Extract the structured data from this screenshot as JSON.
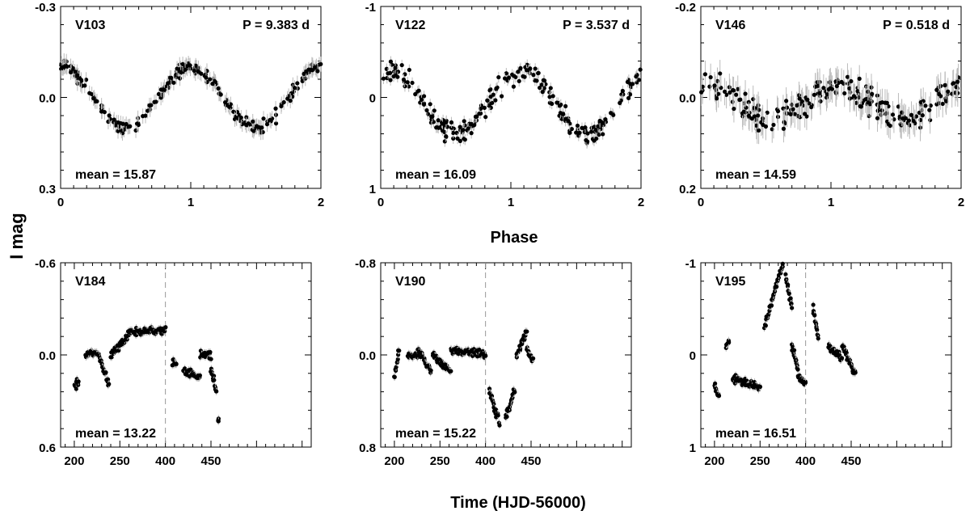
{
  "figure": {
    "y_axis_label": "I mag",
    "phase_axis_label": "Phase",
    "time_axis_label": "Time (HJD-56000)"
  },
  "chart_data": [
    {
      "type": "scatter",
      "star": "V103",
      "period": "P = 9.383 d",
      "mean": "mean = 15.87",
      "xlabel": "Phase",
      "ylabel": "I mag",
      "xlim": [
        0,
        2
      ],
      "ylim": [
        -0.3,
        0.3
      ],
      "y_inverted": true,
      "xticks": [
        "0",
        "1",
        "2"
      ],
      "yticks": [
        "-0.3",
        "0.0",
        "0.3"
      ],
      "ytick_values": [
        -0.3,
        0.0,
        0.3
      ],
      "curve": {
        "kind": "cos",
        "amplitude": 0.1,
        "offset": 0.0,
        "peak_phase": 0.0,
        "scatter": 0.02
      },
      "error_bar": 0.025
    },
    {
      "type": "scatter",
      "star": "V122",
      "period": "P = 3.537 d",
      "mean": "mean = 16.09",
      "xlabel": "Phase",
      "ylabel": "I mag",
      "xlim": [
        0,
        2
      ],
      "ylim": [
        -1,
        1
      ],
      "y_inverted": true,
      "xticks": [
        "0",
        "1",
        "2"
      ],
      "yticks": [
        "-1",
        "0",
        "1"
      ],
      "ytick_values": [
        -1,
        0,
        1
      ],
      "curve": {
        "kind": "cos",
        "amplitude": 0.35,
        "offset": 0.05,
        "peak_phase": 0.08,
        "scatter": 0.12
      },
      "error_bar": 0.06
    },
    {
      "type": "scatter",
      "star": "V146",
      "period": "P = 0.518 d",
      "mean": "mean = 14.59",
      "xlabel": "Phase",
      "ylabel": "I mag",
      "xlim": [
        0,
        2
      ],
      "ylim": [
        -0.2,
        0.2
      ],
      "y_inverted": true,
      "xticks": [
        "0",
        "1",
        "2"
      ],
      "yticks": [
        "-0.2",
        "0.0",
        "0.2"
      ],
      "ytick_values": [
        -0.2,
        0.0,
        0.2
      ],
      "curve": {
        "kind": "cos",
        "amplitude": 0.035,
        "offset": 0.01,
        "peak_phase": 0.05,
        "scatter": 0.03
      },
      "error_bar": 0.03
    },
    {
      "type": "scatter",
      "star": "V184",
      "mean": "mean = 13.22",
      "xlabel": "Time (HJD-56000)",
      "ylabel": "I mag",
      "xlim": [
        185,
        460
      ],
      "ylim": [
        -0.6,
        0.6
      ],
      "y_inverted": true,
      "xticks": [
        "200",
        "250",
        "400",
        "450"
      ],
      "xtick_pos": [
        200,
        250,
        300,
        350
      ],
      "yticks": [
        "-0.6",
        "0.0",
        "0.6"
      ],
      "ytick_values": [
        -0.6,
        0.0,
        0.6
      ],
      "break_at": 300,
      "segments": [
        {
          "t0": 200,
          "t1": 205,
          "y0": 0.2,
          "y1": 0.17
        },
        {
          "t0": 212,
          "t1": 226,
          "y0": 0.0,
          "y1": -0.02
        },
        {
          "t0": 227,
          "t1": 238,
          "y0": 0.0,
          "y1": 0.2
        },
        {
          "t0": 240,
          "t1": 262,
          "y0": 0.0,
          "y1": -0.15
        },
        {
          "t0": 262,
          "t1": 300,
          "y0": -0.15,
          "y1": -0.16
        },
        {
          "t0": 308,
          "t1": 312,
          "y0": 0.05,
          "y1": 0.05
        },
        {
          "t0": 320,
          "t1": 338,
          "y0": 0.1,
          "y1": 0.15
        },
        {
          "t0": 338,
          "t1": 350,
          "y0": 0.0,
          "y1": 0.0
        },
        {
          "t0": 350,
          "t1": 356,
          "y0": 0.1,
          "y1": 0.23
        },
        {
          "t0": 358,
          "t1": 358,
          "y0": 0.43,
          "y1": 0.43
        }
      ]
    },
    {
      "type": "scatter",
      "star": "V190",
      "mean": "mean = 15.22",
      "xlabel": "Time (HJD-56000)",
      "ylabel": "I mag",
      "xlim": [
        185,
        460
      ],
      "ylim": [
        -0.8,
        0.8
      ],
      "y_inverted": true,
      "xticks": [
        "200",
        "250",
        "400",
        "450"
      ],
      "xtick_pos": [
        200,
        250,
        300,
        350
      ],
      "yticks": [
        "-0.8",
        "0.0",
        "0.8"
      ],
      "ytick_values": [
        -0.8,
        0.0,
        0.8
      ],
      "break_at": 300,
      "segments": [
        {
          "t0": 200,
          "t1": 205,
          "y0": 0.2,
          "y1": -0.05
        },
        {
          "t0": 215,
          "t1": 226,
          "y0": 0.0,
          "y1": 0.0
        },
        {
          "t0": 226,
          "t1": 240,
          "y0": -0.05,
          "y1": 0.15
        },
        {
          "t0": 242,
          "t1": 262,
          "y0": 0.0,
          "y1": 0.15
        },
        {
          "t0": 262,
          "t1": 300,
          "y0": -0.05,
          "y1": 0.0
        },
        {
          "t0": 304,
          "t1": 315,
          "y0": 0.3,
          "y1": 0.6
        },
        {
          "t0": 322,
          "t1": 332,
          "y0": 0.55,
          "y1": 0.3
        },
        {
          "t0": 334,
          "t1": 345,
          "y0": 0.0,
          "y1": -0.2
        },
        {
          "t0": 345,
          "t1": 352,
          "y0": -0.05,
          "y1": 0.05
        }
      ]
    },
    {
      "type": "scatter",
      "star": "V195",
      "mean": "mean = 16.51",
      "xlabel": "Time (HJD-56000)",
      "ylabel": "I mag",
      "xlim": [
        185,
        460
      ],
      "ylim": [
        -1,
        1
      ],
      "y_inverted": true,
      "xticks": [
        "200",
        "250",
        "400",
        "450"
      ],
      "xtick_pos": [
        200,
        250,
        300,
        350
      ],
      "yticks": [
        "-1",
        "0",
        "1"
      ],
      "ytick_values": [
        -1,
        0,
        1
      ],
      "break_at": 300,
      "segments": [
        {
          "t0": 200,
          "t1": 205,
          "y0": 0.35,
          "y1": 0.45
        },
        {
          "t0": 213,
          "t1": 216,
          "y0": -0.1,
          "y1": -0.15
        },
        {
          "t0": 220,
          "t1": 250,
          "y0": 0.25,
          "y1": 0.35
        },
        {
          "t0": 255,
          "t1": 275,
          "y0": -0.3,
          "y1": -1.0
        },
        {
          "t0": 278,
          "t1": 285,
          "y0": -0.85,
          "y1": -0.5
        },
        {
          "t0": 285,
          "t1": 292,
          "y0": -0.1,
          "y1": 0.2
        },
        {
          "t0": 292,
          "t1": 300,
          "y0": 0.25,
          "y1": 0.3
        },
        {
          "t0": 308,
          "t1": 314,
          "y0": -0.5,
          "y1": -0.2
        },
        {
          "t0": 325,
          "t1": 340,
          "y0": -0.1,
          "y1": 0.05
        },
        {
          "t0": 340,
          "t1": 355,
          "y0": -0.1,
          "y1": 0.2
        }
      ]
    }
  ]
}
